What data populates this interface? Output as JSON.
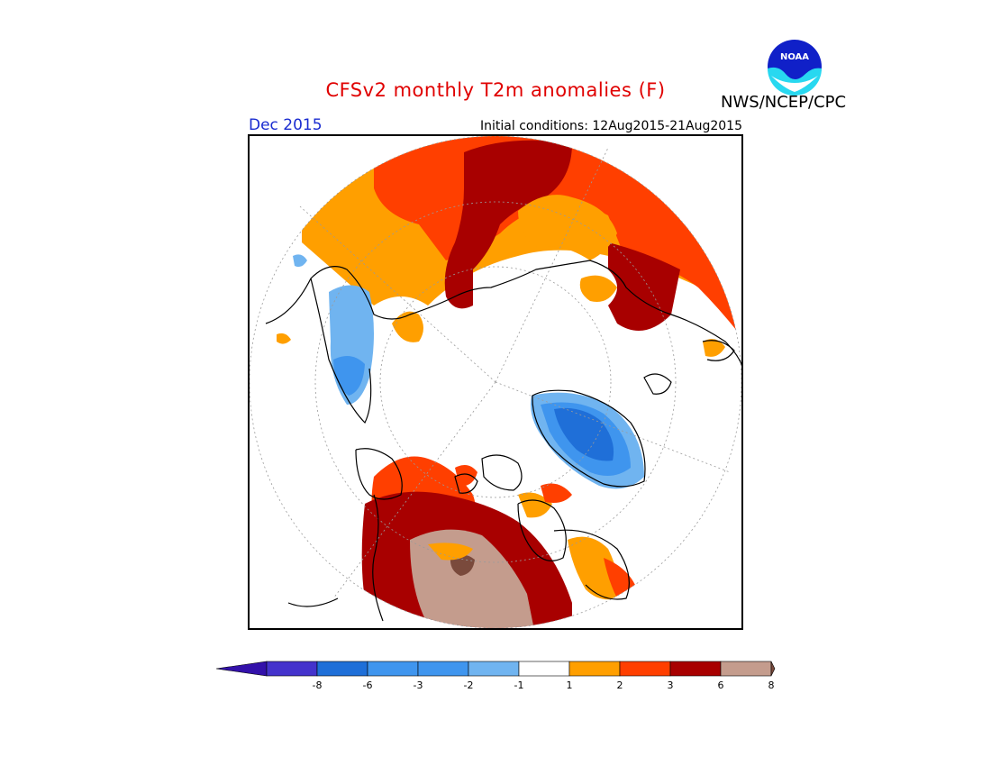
{
  "header": {
    "title": "CFSv2 monthly T2m anomalies (F)",
    "month": "Dec 2015",
    "initial_conditions": "Initial conditions: 12Aug2015-21Aug2015",
    "agency": "NWS/NCEP/CPC",
    "logo_text": "NOAA"
  },
  "colors": {
    "blue_dark": "#3311aa",
    "blue_1": "#4433cc",
    "blue_2": "#1f6fd8",
    "blue_3": "#3f95ee",
    "blue_4": "#70b4f0",
    "neutral": "#ffffff",
    "orange": "#ff9f00",
    "red_orange": "#ff3f00",
    "dark_red": "#a80000",
    "tan": "#c49c8d",
    "brown": "#7a4a3c"
  },
  "colorbar": {
    "tick_labels": [
      "-8",
      "-6",
      "-3",
      "-2",
      "-1",
      "1",
      "2",
      "3",
      "6",
      "8"
    ]
  }
}
